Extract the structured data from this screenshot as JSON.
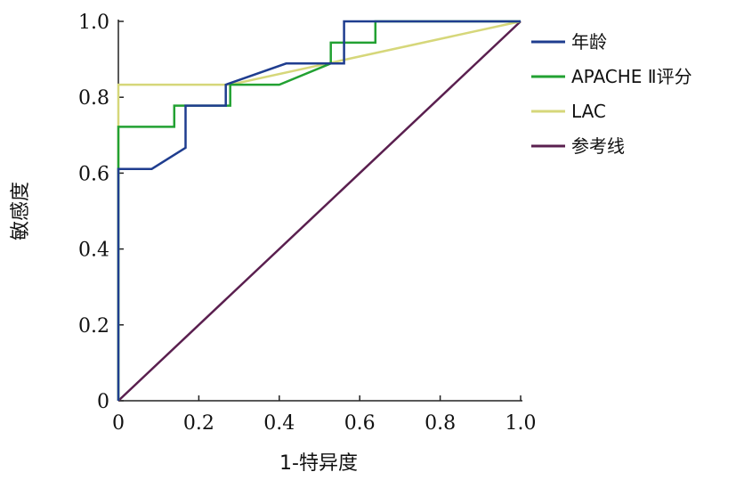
{
  "chart_data": {
    "type": "line",
    "title": "",
    "xlabel": "1-特异度",
    "ylabel": "敏感度",
    "xlim": [
      0,
      1
    ],
    "ylim": [
      0,
      1
    ],
    "x_ticks": [
      {
        "value": 0,
        "label": "0"
      },
      {
        "value": 0.2,
        "label": "0.2"
      },
      {
        "value": 0.4,
        "label": "0.4"
      },
      {
        "value": 0.6,
        "label": "0.6"
      },
      {
        "value": 0.8,
        "label": "0.8"
      },
      {
        "value": 1.0,
        "label": "1.0"
      }
    ],
    "y_ticks": [
      {
        "value": 0,
        "label": "0"
      },
      {
        "value": 0.2,
        "label": "0.2"
      },
      {
        "value": 0.4,
        "label": "0.4"
      },
      {
        "value": 0.6,
        "label": "0.6"
      },
      {
        "value": 0.8,
        "label": "0.8"
      },
      {
        "value": 1.0,
        "label": "1.0"
      }
    ],
    "grid": false,
    "legend_position": "right-top",
    "series": [
      {
        "name": "年龄",
        "color": "#1f3d8f",
        "points": [
          [
            0,
            0
          ],
          [
            0,
            0.611
          ],
          [
            0.083,
            0.611
          ],
          [
            0.167,
            0.667
          ],
          [
            0.167,
            0.778
          ],
          [
            0.267,
            0.778
          ],
          [
            0.267,
            0.833
          ],
          [
            0.417,
            0.889
          ],
          [
            0.5,
            0.889
          ],
          [
            0.561,
            0.889
          ],
          [
            0.561,
            1.0
          ],
          [
            1.0,
            1.0
          ]
        ]
      },
      {
        "name": "APACHE Ⅱ评分",
        "color": "#22a132",
        "points": [
          [
            0,
            0
          ],
          [
            0,
            0.722
          ],
          [
            0.139,
            0.722
          ],
          [
            0.139,
            0.778
          ],
          [
            0.278,
            0.778
          ],
          [
            0.278,
            0.833
          ],
          [
            0.4,
            0.833
          ],
          [
            0.528,
            0.889
          ],
          [
            0.528,
            0.944
          ],
          [
            0.639,
            0.944
          ],
          [
            0.639,
            1.0
          ],
          [
            1.0,
            1.0
          ]
        ]
      },
      {
        "name": "LAC",
        "color": "#d6d77a",
        "points": [
          [
            0,
            0
          ],
          [
            0,
            0.833
          ],
          [
            0.278,
            0.833
          ],
          [
            1.0,
            1.0
          ]
        ]
      },
      {
        "name": "参考线",
        "color": "#5a1f4f",
        "points": [
          [
            0,
            0
          ],
          [
            1.0,
            1.0
          ]
        ]
      }
    ]
  }
}
